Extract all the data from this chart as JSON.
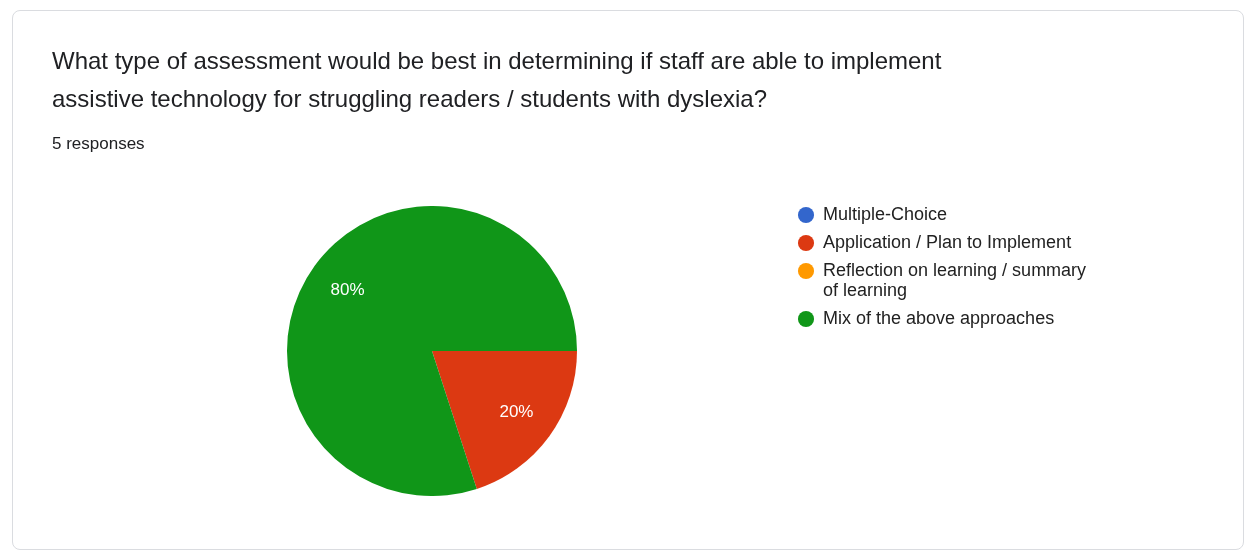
{
  "chart_data": {
    "type": "pie",
    "title": "What type of assessment would be best in determining if staff are able to implement assistive technology for struggling readers / students with dyslexia?",
    "subtitle": "5 responses",
    "categories": [
      "Multiple-Choice",
      "Application / Plan to Implement",
      "Reflection on learning / summary of learning",
      "Mix of the above approaches"
    ],
    "values": [
      0,
      20,
      0,
      80
    ],
    "colors": [
      "#3366cc",
      "#dc3912",
      "#ff9900",
      "#109618"
    ],
    "value_labels": [
      null,
      "20%",
      null,
      "80%"
    ],
    "legend": "right"
  }
}
